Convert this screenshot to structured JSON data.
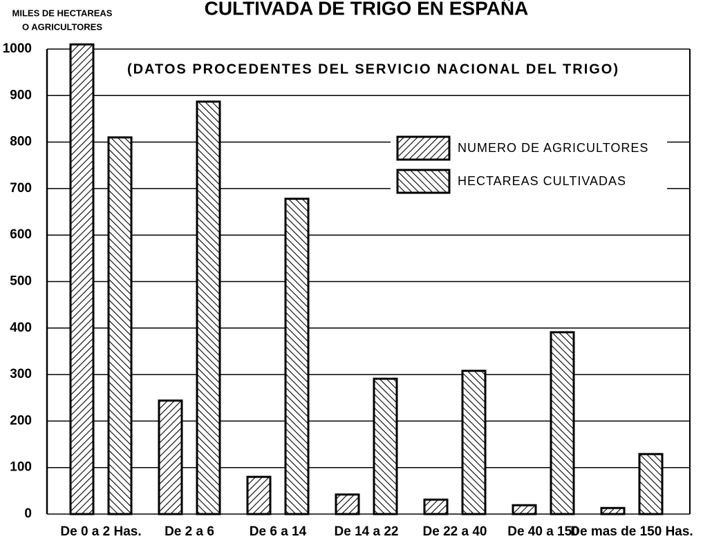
{
  "chart_data": {
    "type": "bar",
    "title": "CULTIVADA DE TRIGO EN ESPAÑA",
    "subtitle": "(DATOS PROCEDENTES DEL SERVICIO NACIONAL DEL TRIGO)",
    "y_label": [
      "MILES DE HECTAREAS",
      "O AGRICULTORES"
    ],
    "categories": [
      "De 0 a 2 Has.",
      "De 2 a 6",
      "De 6 a 14",
      "De 14 a 22",
      "De 22 a 40",
      "De 40 a 150",
      "De mas de 150 Has."
    ],
    "series": [
      {
        "name": "NUMERO DE AGRICULTORES",
        "color": "#000000",
        "values": [
          1010,
          244,
          80,
          42,
          31,
          19,
          13
        ]
      },
      {
        "name": "HECTAREAS CULTIVADAS",
        "color": "#000000",
        "values": [
          810,
          887,
          678,
          291,
          308,
          391,
          129
        ]
      }
    ],
    "ylim": [
      0,
      1000
    ],
    "yticks": [
      0,
      100,
      200,
      300,
      400,
      500,
      600,
      700,
      800,
      900,
      1000
    ],
    "grid": true
  }
}
